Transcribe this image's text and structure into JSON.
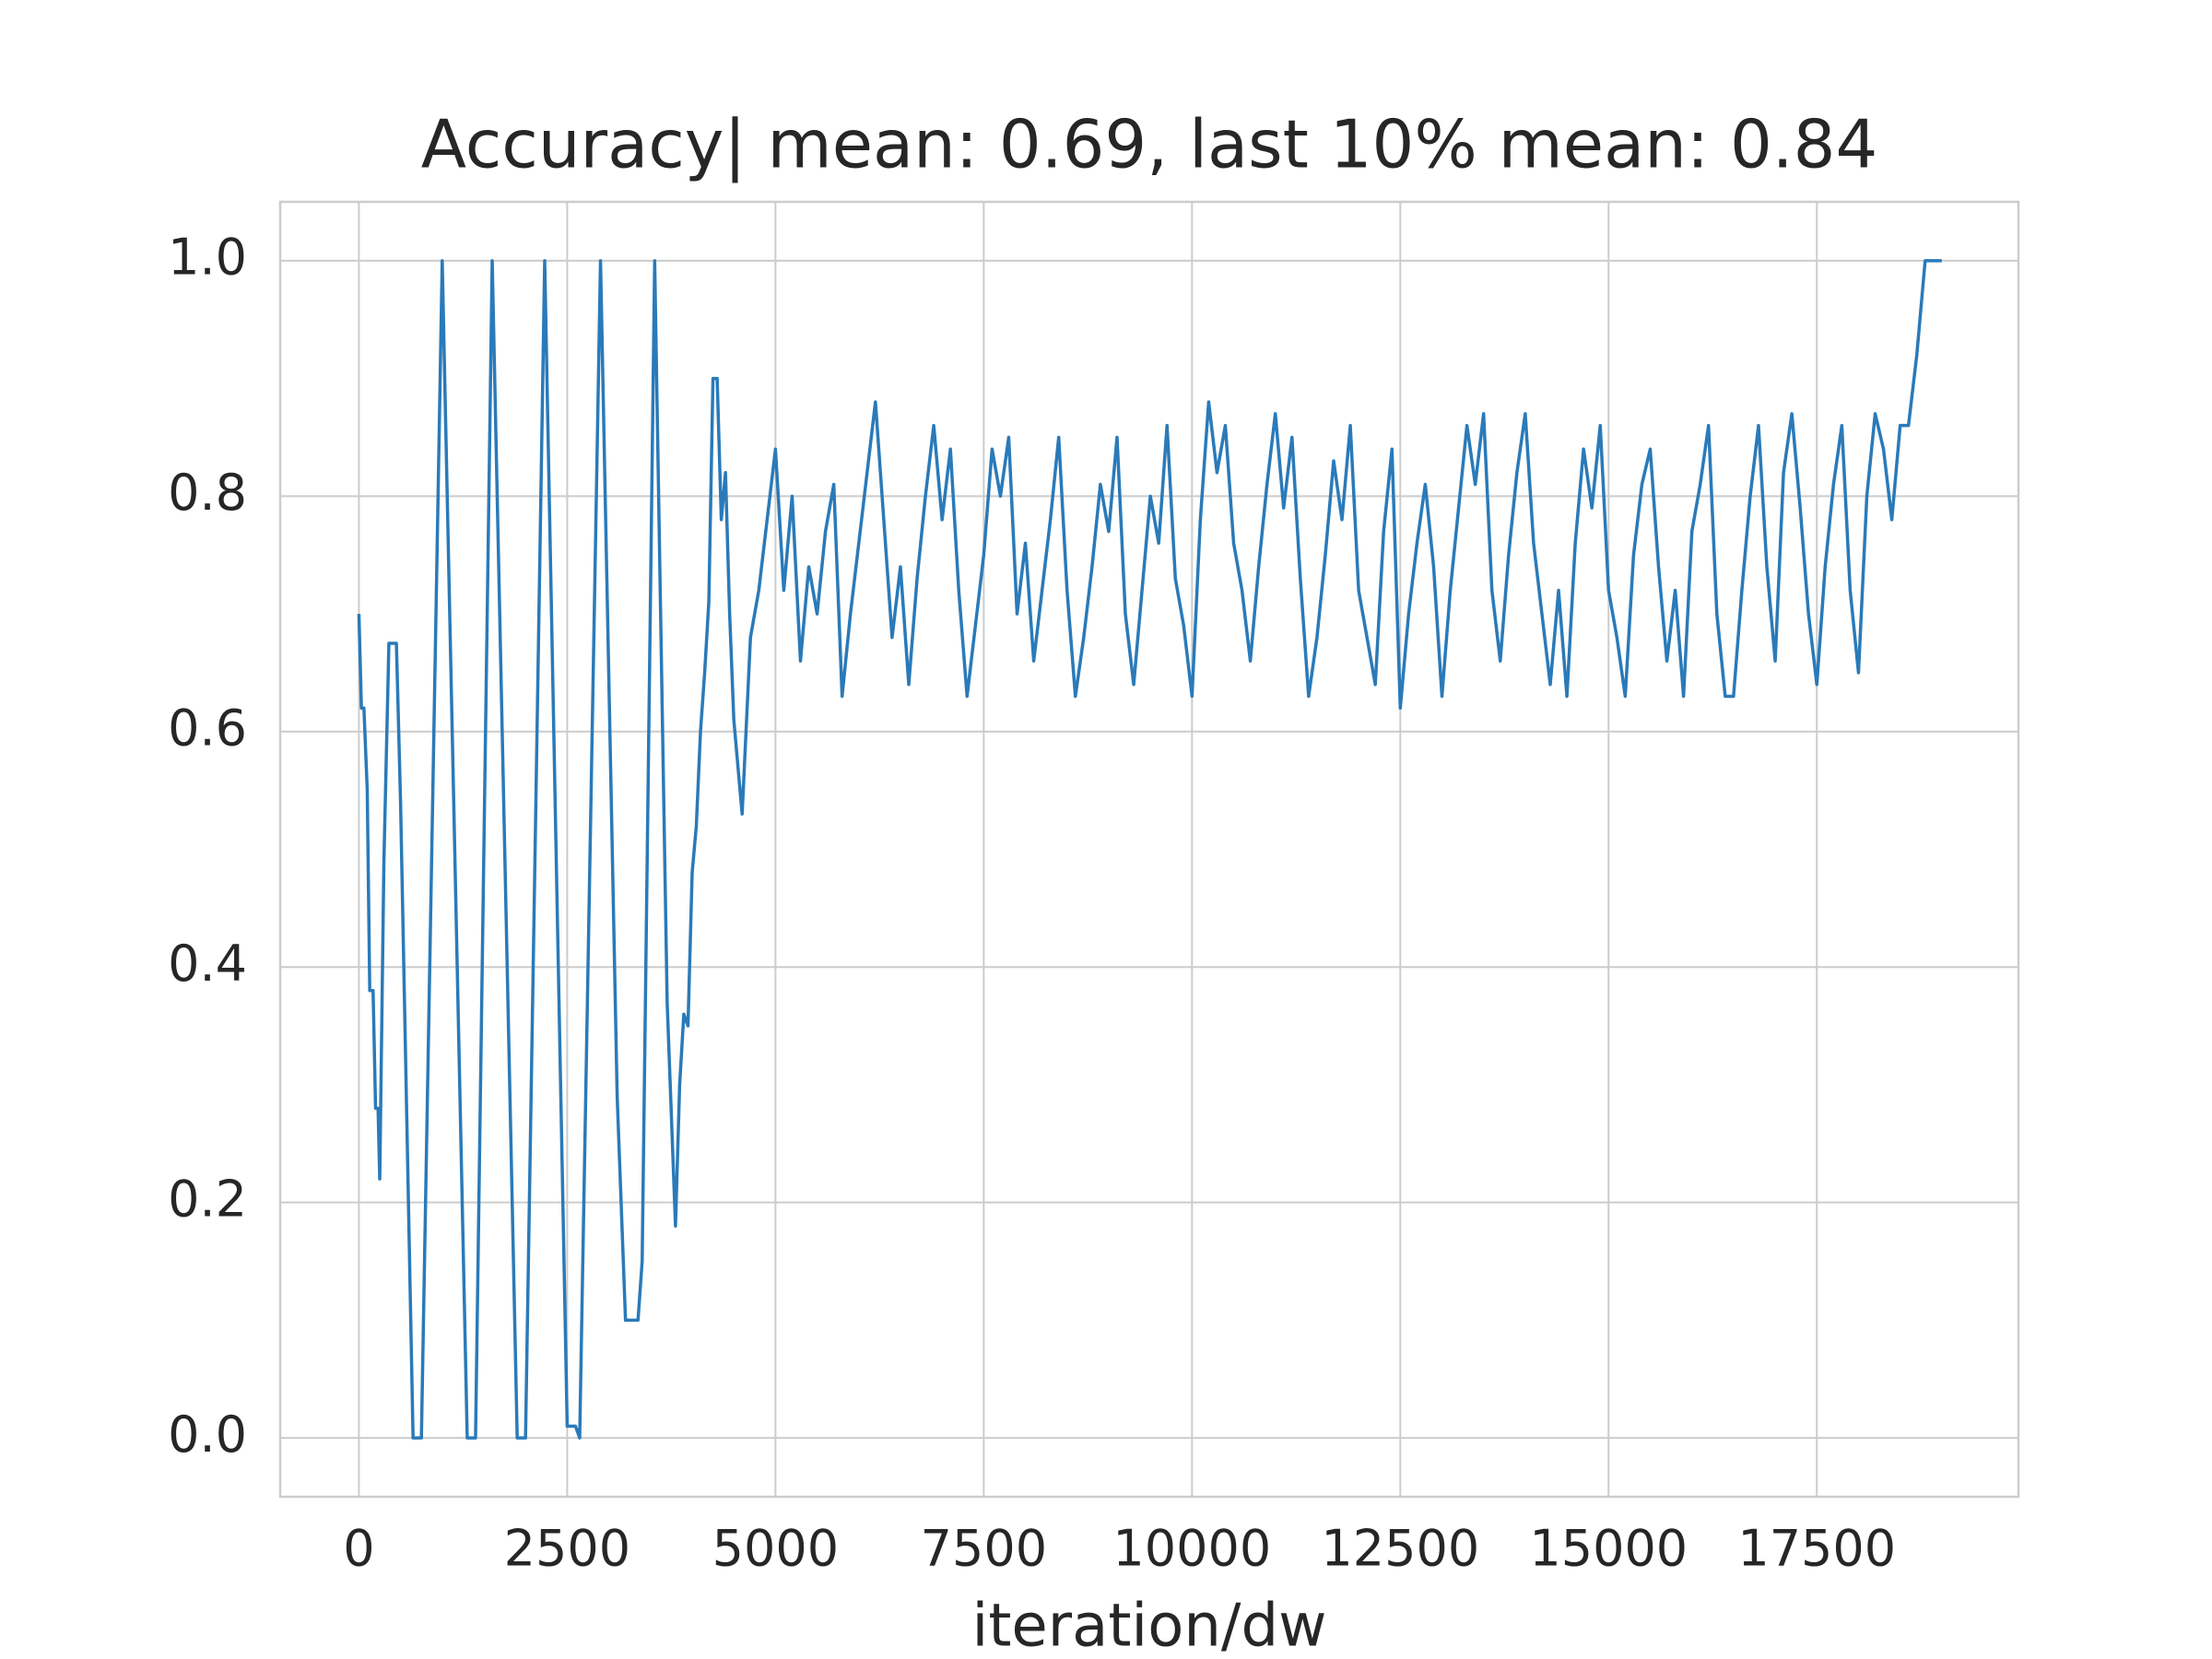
{
  "chart_data": {
    "type": "line",
    "title": "Accuracy| mean: 0.69, last 10% mean: 0.84",
    "x_label": "iteration/dw",
    "x": [
      0,
      30,
      60,
      100,
      130,
      170,
      200,
      230,
      250,
      300,
      360,
      450,
      500,
      650,
      750,
      1000,
      1300,
      1400,
      1600,
      1900,
      2000,
      2230,
      2500,
      2600,
      2650,
      2900,
      3100,
      3200,
      3350,
      3400,
      3550,
      3700,
      3800,
      3850,
      3900,
      3950,
      4000,
      4050,
      4100,
      4150,
      4200,
      4250,
      4300,
      4350,
      4400,
      4450,
      4500,
      4600,
      4700,
      4800,
      4900,
      5000,
      5100,
      5200,
      5300,
      5400,
      5500,
      5600,
      5700,
      5800,
      5900,
      6000,
      6100,
      6200,
      6300,
      6400,
      6500,
      6600,
      6700,
      6800,
      6900,
      7000,
      7100,
      7200,
      7300,
      7400,
      7500,
      7600,
      7700,
      7800,
      7900,
      8000,
      8100,
      8200,
      8300,
      8400,
      8500,
      8600,
      8700,
      8800,
      8900,
      9000,
      9100,
      9200,
      9300,
      9400,
      9500,
      9600,
      9700,
      9800,
      9900,
      10000,
      10100,
      10200,
      10300,
      10400,
      10500,
      10600,
      10700,
      10800,
      10900,
      11000,
      11100,
      11200,
      11300,
      11400,
      11500,
      11600,
      11700,
      11800,
      11900,
      12000,
      12100,
      12200,
      12300,
      12400,
      12500,
      12600,
      12700,
      12800,
      12900,
      13000,
      13100,
      13200,
      13300,
      13400,
      13500,
      13600,
      13700,
      13800,
      13900,
      14000,
      14100,
      14200,
      14300,
      14400,
      14500,
      14600,
      14700,
      14800,
      14900,
      15000,
      15100,
      15200,
      15300,
      15400,
      15500,
      15600,
      15700,
      15800,
      15900,
      16000,
      16100,
      16200,
      16300,
      16400,
      16500,
      16600,
      16700,
      16800,
      16900,
      17000,
      17100,
      17200,
      17300,
      17400,
      17500,
      17600,
      17700,
      17800,
      17900,
      18000,
      18100,
      18200,
      18300,
      18400,
      18500,
      18600,
      18700,
      18800,
      19000
    ],
    "series": [
      {
        "name": "Accuracy",
        "color": "#2a7ab9",
        "values": [
          0.7,
          0.62,
          0.62,
          0.55,
          0.38,
          0.38,
          0.28,
          0.28,
          0.22,
          0.49,
          0.675,
          0.675,
          0.54,
          0,
          0,
          1,
          0,
          0,
          1,
          0,
          0,
          1,
          0.01,
          0.01,
          0,
          1,
          0.29,
          0.1,
          0.1,
          0.15,
          1,
          0.37,
          0.18,
          0.3,
          0.36,
          0.35,
          0.48,
          0.52,
          0.6,
          0.65,
          0.71,
          0.9,
          0.9,
          0.78,
          0.82,
          0.7,
          0.61,
          0.53,
          0.68,
          0.72,
          0.78,
          0.84,
          0.72,
          0.8,
          0.66,
          0.74,
          0.7,
          0.77,
          0.81,
          0.63,
          0.7,
          0.76,
          0.82,
          0.88,
          0.78,
          0.68,
          0.74,
          0.64,
          0.73,
          0.8,
          0.86,
          0.78,
          0.84,
          0.72,
          0.63,
          0.69,
          0.75,
          0.84,
          0.8,
          0.85,
          0.7,
          0.76,
          0.66,
          0.72,
          0.78,
          0.85,
          0.72,
          0.63,
          0.68,
          0.74,
          0.81,
          0.77,
          0.85,
          0.7,
          0.64,
          0.72,
          0.8,
          0.76,
          0.86,
          0.73,
          0.69,
          0.63,
          0.78,
          0.88,
          0.82,
          0.86,
          0.76,
          0.72,
          0.66,
          0.74,
          0.81,
          0.87,
          0.79,
          0.85,
          0.73,
          0.63,
          0.68,
          0.75,
          0.83,
          0.78,
          0.86,
          0.72,
          0.68,
          0.64,
          0.77,
          0.84,
          0.62,
          0.7,
          0.76,
          0.81,
          0.74,
          0.63,
          0.72,
          0.79,
          0.86,
          0.81,
          0.87,
          0.72,
          0.66,
          0.75,
          0.82,
          0.87,
          0.76,
          0.7,
          0.64,
          0.72,
          0.63,
          0.76,
          0.84,
          0.79,
          0.86,
          0.72,
          0.68,
          0.63,
          0.75,
          0.81,
          0.84,
          0.74,
          0.66,
          0.72,
          0.63,
          0.77,
          0.81,
          0.86,
          0.7,
          0.63,
          0.63,
          0.72,
          0.8,
          0.86,
          0.74,
          0.66,
          0.82,
          0.87,
          0.79,
          0.7,
          0.64,
          0.74,
          0.81,
          0.86,
          0.72,
          0.65,
          0.8,
          0.87,
          0.84,
          0.78,
          0.86,
          0.86,
          0.92,
          1.0,
          1.0
        ]
      }
    ],
    "xlim": [
      -945,
      19920
    ],
    "ylim": [
      -0.05,
      1.05
    ],
    "xticks": [
      0,
      2500,
      5000,
      7500,
      10000,
      12500,
      15000,
      17500
    ],
    "yticks": [
      {
        "value": 0,
        "label": "0.0"
      },
      0.2,
      0.4,
      0.6,
      0.8,
      {
        "value": 1,
        "label": "1.0"
      }
    ],
    "grid": true
  }
}
